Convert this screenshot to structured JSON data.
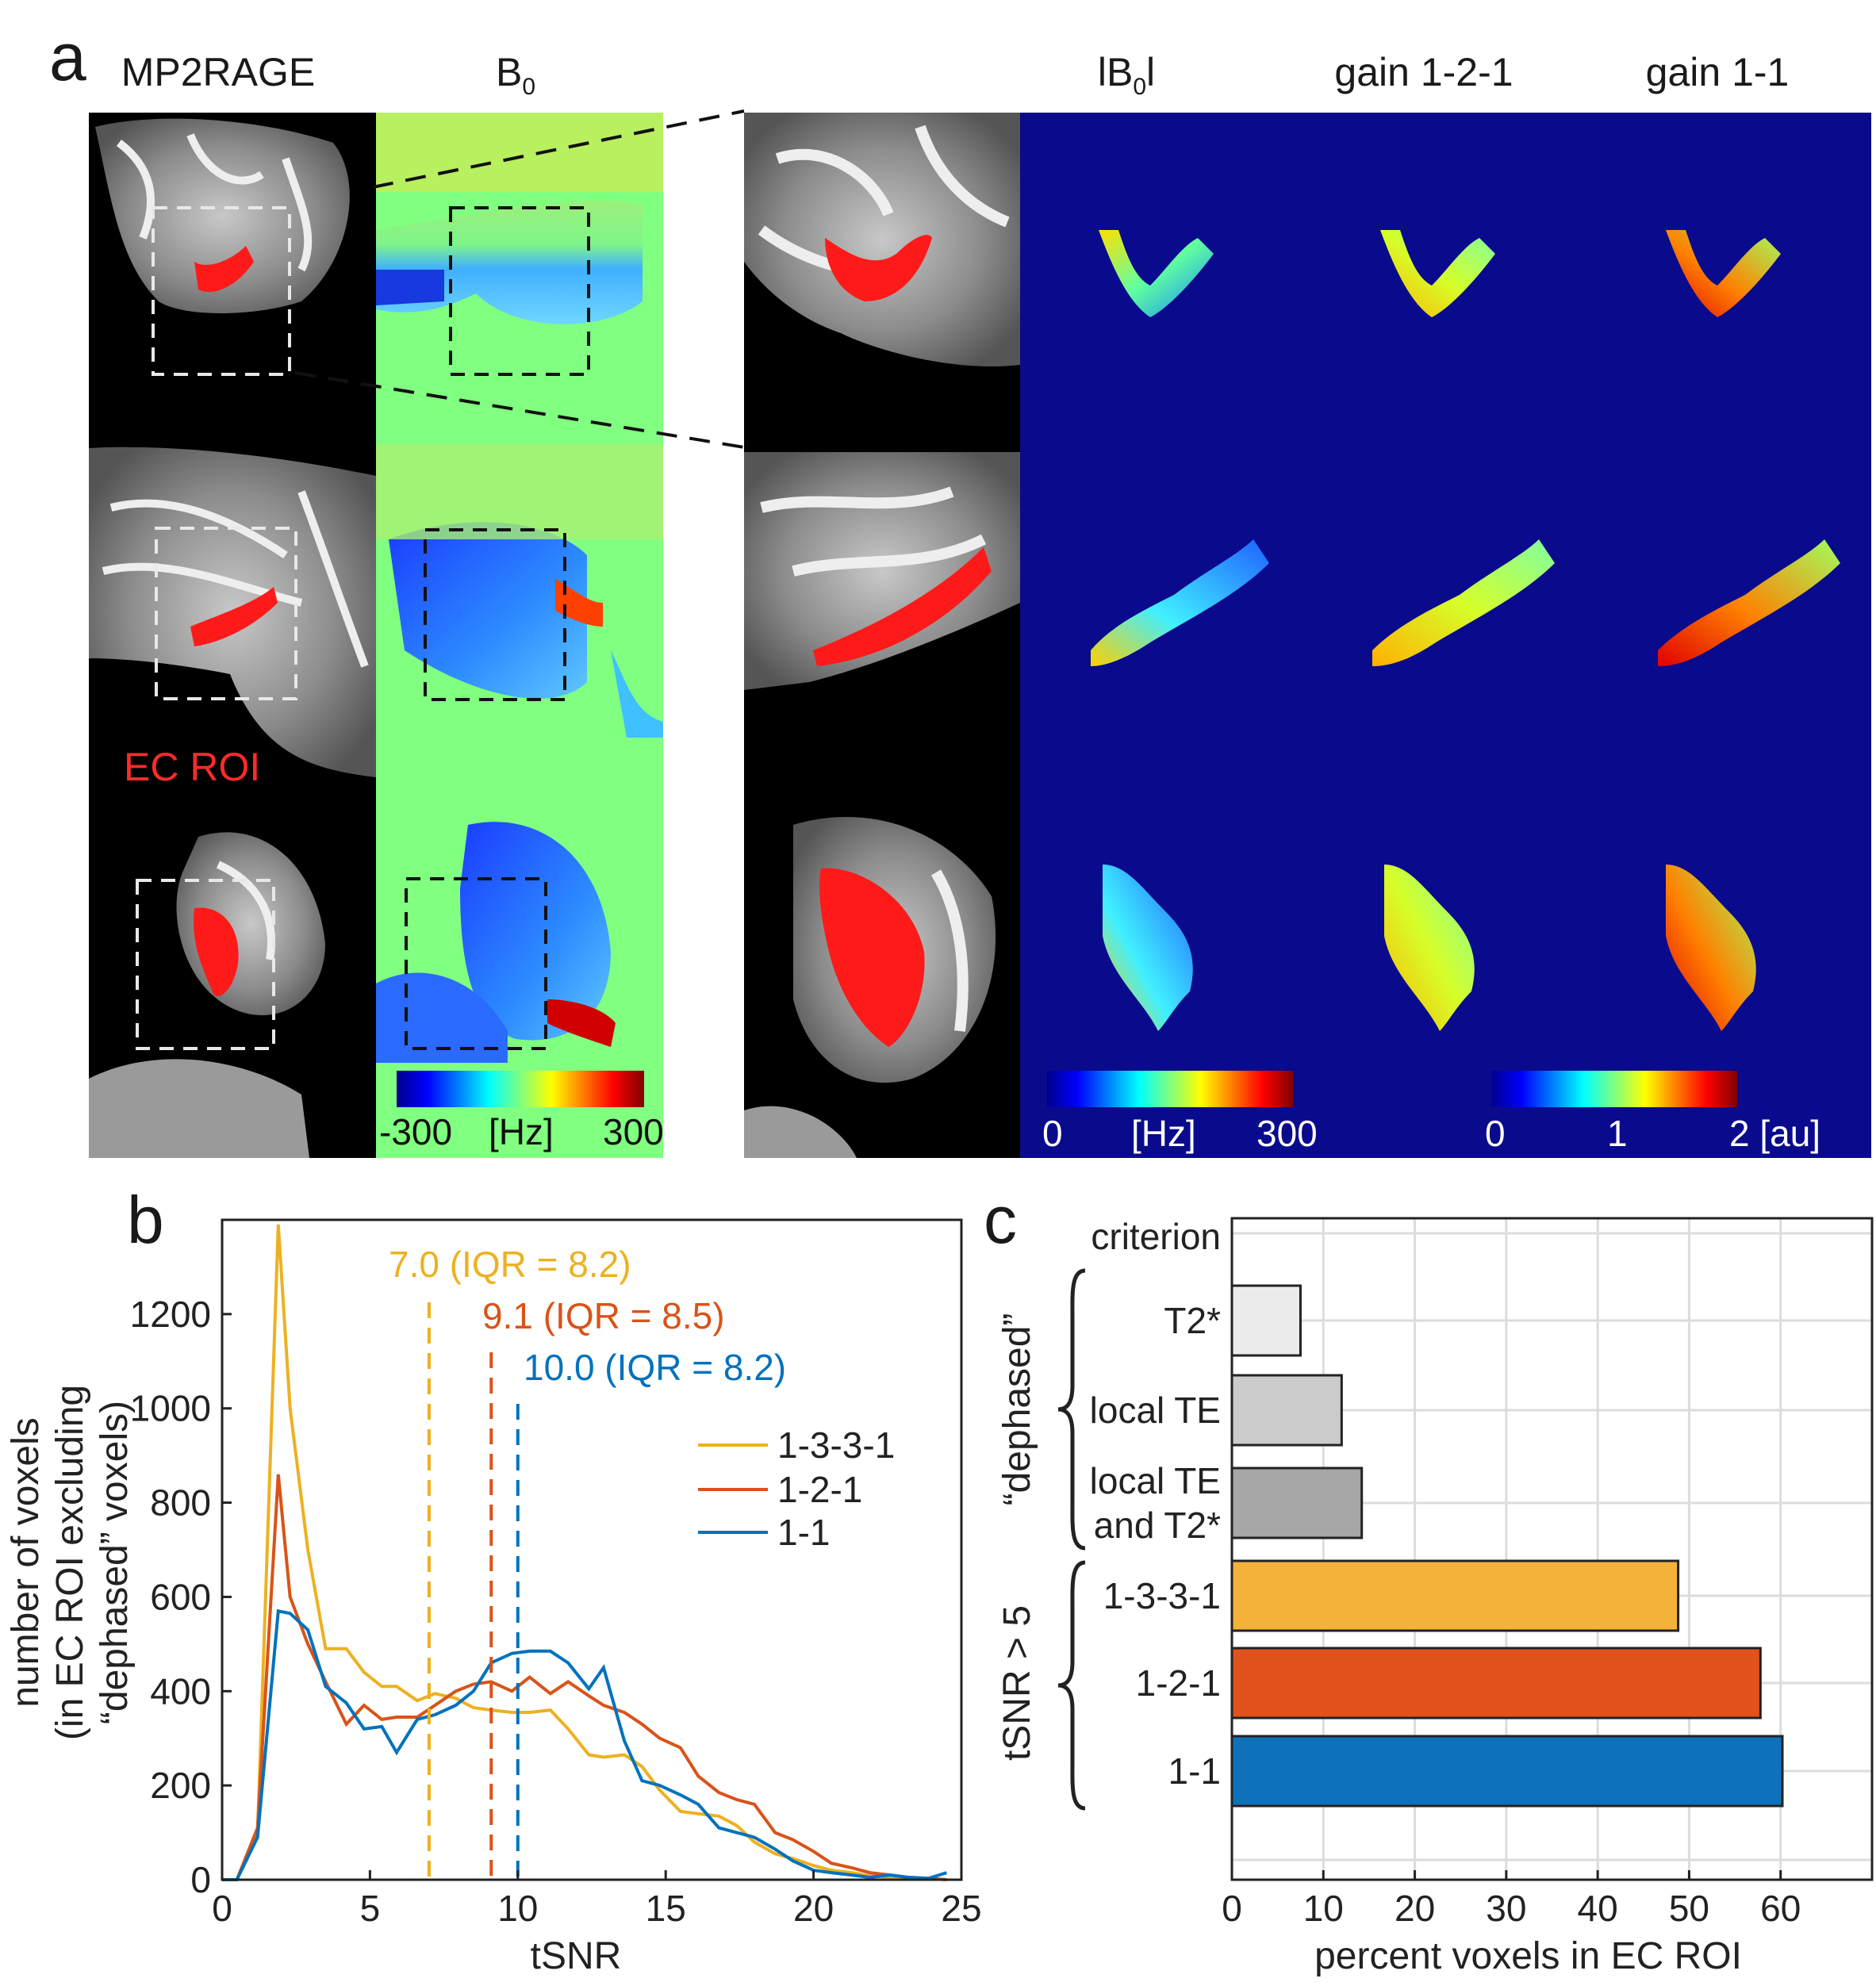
{
  "panel_a": {
    "label": "a",
    "headers": {
      "mp2rage": "MP2RAGE",
      "b0": "B",
      "b0_sub": "0",
      "absb0_pre": "lB",
      "absb0_sub": "0",
      "absb0_post": "l",
      "gain121": "gain 1-2-1",
      "gain11": "gain 1-1"
    },
    "roi_label": "EC ROI",
    "colorbar_b0": {
      "min": "-300",
      "unit": "[Hz]",
      "max": "300"
    },
    "colorbar_absb0": {
      "min": "0",
      "unit": "[Hz]",
      "max": "300"
    },
    "colorbar_gain": {
      "min": "0",
      "mid": "1",
      "max": "2 [au]"
    },
    "colors": {
      "roi": "#ff1a1a",
      "background_map": "#0a0a8c",
      "b0_bg": "#7cff7c"
    }
  },
  "chart_data": [
    {
      "type": "line",
      "panel": "b",
      "xlabel": "tSNR",
      "ylabel_lines": [
        "number of voxels",
        "(in EC ROI excluding",
        "“dephased” voxels)"
      ],
      "xlim": [
        0,
        25
      ],
      "ylim": [
        0,
        1400
      ],
      "xticks": [
        0,
        5,
        10,
        15,
        20,
        25
      ],
      "yticks": [
        0,
        200,
        400,
        600,
        800,
        1000,
        1200
      ],
      "series": [
        {
          "name": "1-3-3-1",
          "color": "#EDB120",
          "x": [
            0,
            0.5,
            1.2,
            1.9,
            2.3,
            2.9,
            3.5,
            4.2,
            4.8,
            5.4,
            5.9,
            6.6,
            7.2,
            7.9,
            8.5,
            9.1,
            9.8,
            10.4,
            11.1,
            11.7,
            12.4,
            12.9,
            13.6,
            14.2,
            14.8,
            15.5,
            16.1,
            16.8,
            17.4,
            18.0,
            18.7,
            19.3,
            20.0,
            20.6,
            21.3,
            21.9,
            22.6,
            23.2,
            23.9,
            24.5
          ],
          "y": [
            0,
            0,
            100,
            1390,
            1000,
            700,
            490,
            490,
            440,
            410,
            410,
            380,
            395,
            385,
            365,
            360,
            355,
            355,
            360,
            320,
            265,
            260,
            265,
            240,
            190,
            145,
            140,
            135,
            115,
            80,
            55,
            45,
            30,
            20,
            15,
            8,
            5,
            3,
            2,
            0
          ]
        },
        {
          "name": "1-2-1",
          "color": "#D95319",
          "x": [
            0,
            0.5,
            1.2,
            1.9,
            2.3,
            2.9,
            3.5,
            4.2,
            4.8,
            5.4,
            5.9,
            6.6,
            7.2,
            7.9,
            8.5,
            9.1,
            9.8,
            10.4,
            11.1,
            11.7,
            12.4,
            12.9,
            13.6,
            14.2,
            14.8,
            15.5,
            16.1,
            16.8,
            17.4,
            18.0,
            18.7,
            19.3,
            20.0,
            20.6,
            21.3,
            21.9,
            22.6,
            23.2,
            23.9,
            24.5
          ],
          "y": [
            0,
            0,
            110,
            860,
            600,
            500,
            420,
            330,
            370,
            340,
            345,
            345,
            370,
            400,
            415,
            420,
            400,
            430,
            395,
            420,
            390,
            370,
            355,
            330,
            300,
            280,
            220,
            185,
            170,
            160,
            100,
            85,
            60,
            35,
            25,
            15,
            10,
            5,
            3,
            0
          ]
        },
        {
          "name": "1-1",
          "color": "#0072BD",
          "x": [
            0,
            0.5,
            1.2,
            1.9,
            2.3,
            2.9,
            3.5,
            4.2,
            4.8,
            5.4,
            5.9,
            6.6,
            7.2,
            7.9,
            8.5,
            9.1,
            9.8,
            10.4,
            11.1,
            11.7,
            12.4,
            12.9,
            13.6,
            14.2,
            14.8,
            15.5,
            16.1,
            16.8,
            17.4,
            18.0,
            18.7,
            19.3,
            20.0,
            20.6,
            21.3,
            21.9,
            22.6,
            23.2,
            23.9,
            24.5
          ],
          "y": [
            0,
            0,
            90,
            570,
            565,
            530,
            410,
            375,
            320,
            325,
            270,
            340,
            350,
            370,
            400,
            460,
            480,
            485,
            485,
            460,
            405,
            450,
            295,
            210,
            200,
            180,
            160,
            110,
            100,
            90,
            65,
            40,
            20,
            15,
            10,
            5,
            10,
            5,
            3,
            15
          ]
        }
      ],
      "medians": [
        {
          "value": 7.0,
          "label": "7.0 (IQR = 8.2)",
          "color": "#EDB120"
        },
        {
          "value": 9.1,
          "label": "9.1 (IQR = 8.5)",
          "color": "#D95319"
        },
        {
          "value": 10.0,
          "label": "10.0 (IQR = 8.2)",
          "color": "#0072BD"
        }
      ],
      "legend": [
        "1-3-3-1",
        "1-2-1",
        "1-1"
      ],
      "legend_position": "right"
    },
    {
      "type": "bar",
      "panel": "c",
      "orientation": "horizontal",
      "xlabel": "percent voxels in EC ROI",
      "xlim": [
        0,
        70
      ],
      "xticks": [
        0,
        10,
        20,
        30,
        40,
        50,
        60
      ],
      "grid": true,
      "header": "criterion",
      "groups": [
        {
          "label": "“dephased”",
          "members": [
            "T2*",
            "local TE",
            "local TE and T2*"
          ]
        },
        {
          "label": "tSNR > 5",
          "members": [
            "1-3-3-1",
            "1-2-1",
            "1-1"
          ]
        }
      ],
      "categories": [
        "T2*",
        "local TE",
        "local TE\nand T2*",
        "1-3-3-1",
        "1-2-1",
        "1-1"
      ],
      "category_lines": [
        [
          "T2*"
        ],
        [
          "local TE"
        ],
        [
          "local TE",
          "and T2*"
        ],
        [
          "1-3-3-1"
        ],
        [
          "1-2-1"
        ],
        [
          "1-1"
        ]
      ],
      "values": [
        7.5,
        12.0,
        14.2,
        48.8,
        57.8,
        60.2
      ],
      "colors": [
        "#ebebeb",
        "#cbcbcb",
        "#a6a6a6",
        "#F4B23A",
        "#E2521C",
        "#0D72BA"
      ]
    }
  ],
  "labels": {
    "b": "b",
    "c": "c"
  }
}
